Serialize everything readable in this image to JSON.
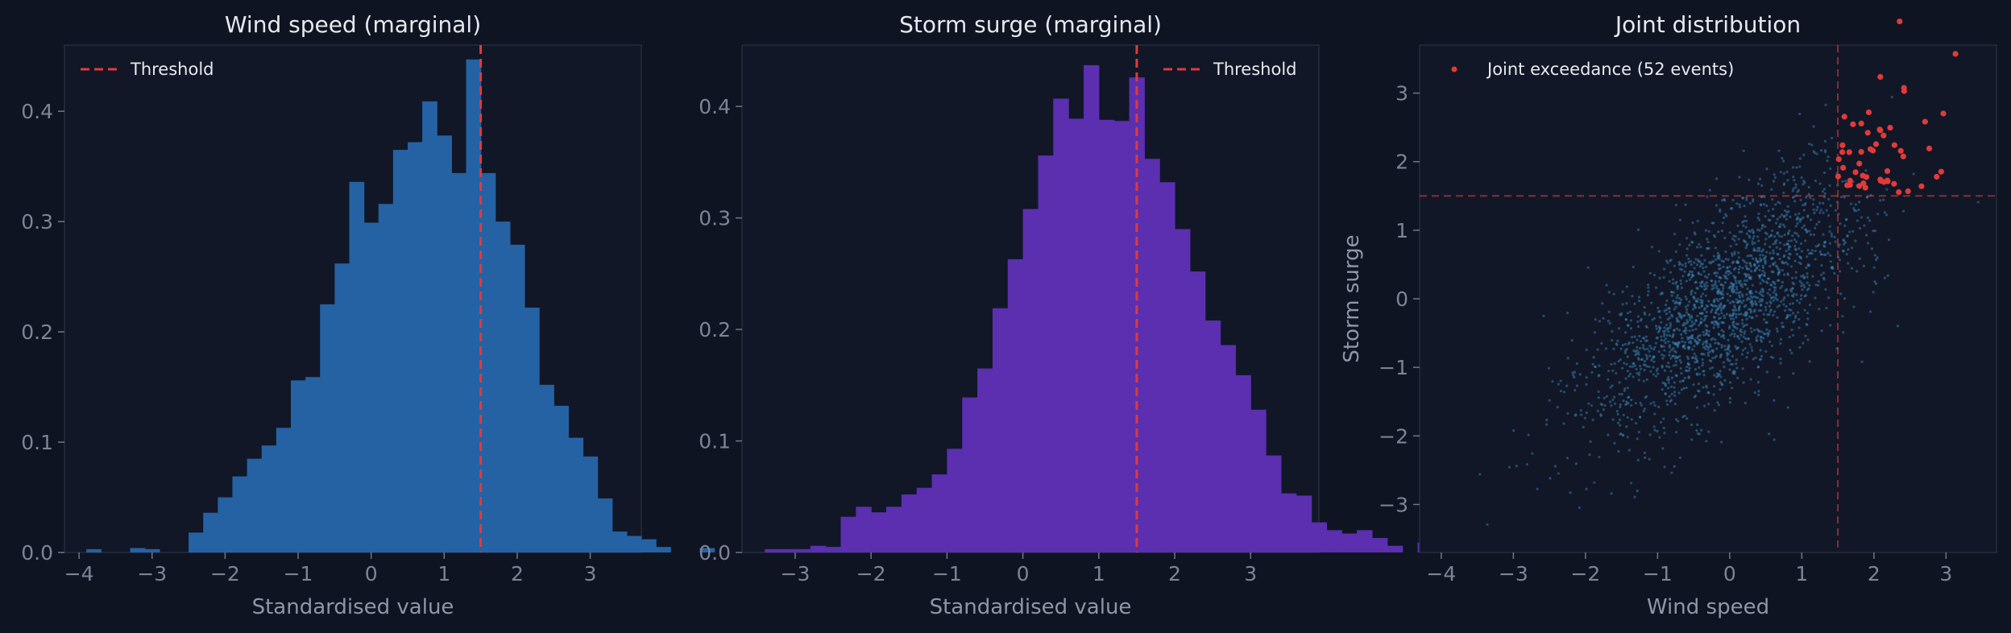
{
  "colors": {
    "background": "#0f1422",
    "axes_face": "#111726",
    "spine": "#262d3e",
    "wind_bar": "#2462a4",
    "surge_bar": "#5b2fb0",
    "threshold": "#e03a3a",
    "scatter_point": "#3d8fc8",
    "exceedance_point": "#e03a3a"
  },
  "chart_data": [
    {
      "type": "bar",
      "title": "Wind speed (marginal)",
      "xlabel": "Standardised value",
      "ylabel": "",
      "xlim": [
        -4.2,
        3.7
      ],
      "ylim": [
        0,
        0.46
      ],
      "xticks": [
        -4,
        -3,
        -2,
        -1,
        0,
        1,
        2,
        3
      ],
      "yticks": [
        0.0,
        0.1,
        0.2,
        0.3,
        0.4
      ],
      "bin_start": -3.9,
      "bin_width": 0.2,
      "values": [
        0.003,
        0.0,
        0.0,
        0.004,
        0.003,
        0.0,
        0.0,
        0.018,
        0.036,
        0.05,
        0.069,
        0.085,
        0.097,
        0.113,
        0.156,
        0.159,
        0.225,
        0.262,
        0.336,
        0.299,
        0.316,
        0.365,
        0.372,
        0.409,
        0.378,
        0.344,
        0.447,
        0.344,
        0.3,
        0.279,
        0.222,
        0.152,
        0.133,
        0.104,
        0.087,
        0.049,
        0.019,
        0.015,
        0.012,
        0.005,
        0.0,
        0.0,
        0.004
      ],
      "threshold": 1.5,
      "legend": {
        "label": "Threshold",
        "placement": "top-left"
      }
    },
    {
      "type": "bar",
      "title": "Storm surge (marginal)",
      "xlabel": "Standardised value",
      "ylabel": "",
      "xlim": [
        -3.7,
        3.9
      ],
      "ylim": [
        0,
        0.455
      ],
      "xticks": [
        -3,
        -2,
        -1,
        0,
        1,
        2,
        3
      ],
      "yticks": [
        0.0,
        0.1,
        0.2,
        0.3,
        0.4
      ],
      "bin_start": -3.4,
      "bin_width": 0.2,
      "values": [
        0.003,
        0.003,
        0.003,
        0.006,
        0.005,
        0.032,
        0.041,
        0.036,
        0.041,
        0.052,
        0.058,
        0.07,
        0.093,
        0.139,
        0.165,
        0.219,
        0.263,
        0.308,
        0.356,
        0.407,
        0.389,
        0.437,
        0.388,
        0.387,
        0.426,
        0.353,
        0.332,
        0.29,
        0.252,
        0.208,
        0.186,
        0.159,
        0.128,
        0.087,
        0.053,
        0.051,
        0.027,
        0.02,
        0.017,
        0.02,
        0.013,
        0.006,
        0.0,
        0.009,
        0.006
      ],
      "threshold": 1.5,
      "legend": {
        "label": "Threshold",
        "placement": "top-right"
      }
    },
    {
      "type": "scatter",
      "title": "Joint distribution",
      "xlabel": "Wind speed",
      "ylabel": "Storm surge",
      "xlim": [
        -4.3,
        3.7
      ],
      "ylim": [
        -3.7,
        3.7
      ],
      "xticks": [
        -4,
        -3,
        -2,
        -1,
        0,
        1,
        2,
        3
      ],
      "yticks": [
        -3,
        -2,
        -1,
        0,
        1,
        2,
        3
      ],
      "threshold_x": 1.5,
      "threshold_y": 1.5,
      "n_points": 2000,
      "correlation": 0.72,
      "exceedance_count": 52,
      "legend": {
        "label": "Joint exceedance (52 events)",
        "placement": "top-left"
      }
    }
  ],
  "tick_labels": {
    "p1_x": [
      "−4",
      "−3",
      "−2",
      "−1",
      "0",
      "1",
      "2",
      "3"
    ],
    "p1_y": [
      "0.0",
      "0.1",
      "0.2",
      "0.3",
      "0.4"
    ],
    "p2_x": [
      "−3",
      "−2",
      "−1",
      "0",
      "1",
      "2",
      "3"
    ],
    "p2_y": [
      "0.0",
      "0.1",
      "0.2",
      "0.3",
      "0.4"
    ],
    "p3_x": [
      "−4",
      "−3",
      "−2",
      "−1",
      "0",
      "1",
      "2",
      "3"
    ],
    "p3_y": [
      "−3",
      "−2",
      "−1",
      "0",
      "1",
      "2",
      "3"
    ]
  }
}
